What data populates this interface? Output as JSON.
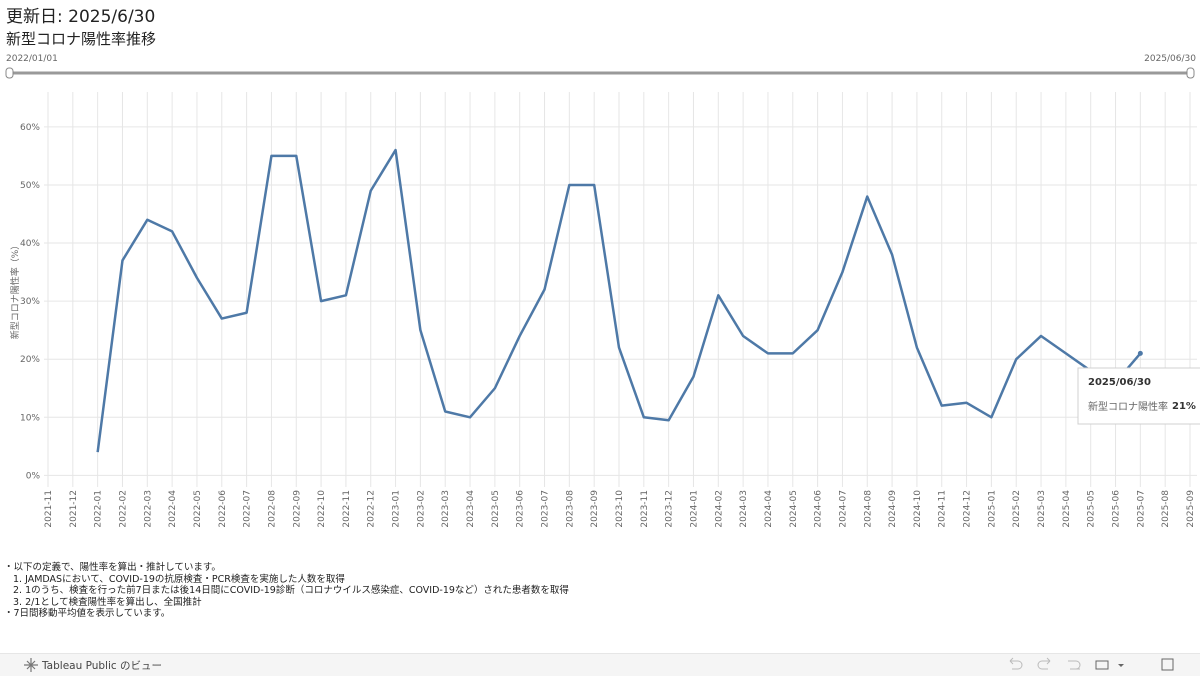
{
  "header": {
    "updated": "更新日: 2025/6/30",
    "title": "新型コロナ陽性率推移"
  },
  "slider": {
    "start": "2022/01/01",
    "end": "2025/06/30"
  },
  "chart_data": {
    "type": "line",
    "ylabel": "新型コロナ陽性率（%）",
    "categories": [
      "2021-11",
      "2021-12",
      "2022-01",
      "2022-02",
      "2022-03",
      "2022-04",
      "2022-05",
      "2022-06",
      "2022-07",
      "2022-08",
      "2022-09",
      "2022-10",
      "2022-11",
      "2022-12",
      "2023-01",
      "2023-02",
      "2023-03",
      "2023-04",
      "2023-05",
      "2023-06",
      "2023-07",
      "2023-08",
      "2023-09",
      "2023-10",
      "2023-11",
      "2023-12",
      "2024-01",
      "2024-02",
      "2024-03",
      "2024-04",
      "2024-05",
      "2024-06",
      "2024-07",
      "2024-08",
      "2024-09",
      "2024-10",
      "2024-11",
      "2024-12",
      "2025-01",
      "2025-02",
      "2025-03",
      "2025-04",
      "2025-05",
      "2025-06",
      "2025-07",
      "2025-08",
      "2025-09"
    ],
    "series": [
      {
        "name": "新型コロナ陽性率",
        "color": "#4e79a7",
        "values": [
          null,
          null,
          4,
          37,
          44,
          42,
          34,
          27,
          28,
          55,
          55,
          30,
          31,
          49,
          56,
          25,
          11,
          10,
          15,
          24,
          32,
          50,
          50,
          22,
          10,
          9.5,
          17,
          31,
          24,
          21,
          21,
          25,
          35,
          48,
          38,
          22,
          12,
          12.5,
          10,
          20,
          24,
          21,
          18,
          16,
          21,
          null,
          null
        ]
      }
    ],
    "ylim": [
      -2,
      66
    ],
    "yticks": [
      {
        "value": 0,
        "label": "0%"
      },
      {
        "value": 10,
        "label": "10%"
      },
      {
        "value": 20,
        "label": "20%"
      },
      {
        "value": 30,
        "label": "30%"
      },
      {
        "value": 40,
        "label": "40%"
      },
      {
        "value": 50,
        "label": "50%"
      },
      {
        "value": 60,
        "label": "60%"
      }
    ],
    "grid": true
  },
  "tooltip": {
    "title": "2025/06/30",
    "field": "新型コロナ陽性率",
    "value": "21%"
  },
  "notes": [
    "・以下の定義で、陽性率を算出・推計しています。",
    "1. JAMDASにおいて、COVID-19の抗原検査・PCR検査を実施した人数を取得",
    "2. 1のうち、検査を行った前7日または後14日間にCOVID-19診断（コロナウイルス感染症、COVID-19など）された患者数を取得",
    "3. 2/1として検査陽性率を算出し、全国推計",
    "・7日間移動平均値を表示しています。"
  ],
  "footer": "Tableau Public のビュー"
}
